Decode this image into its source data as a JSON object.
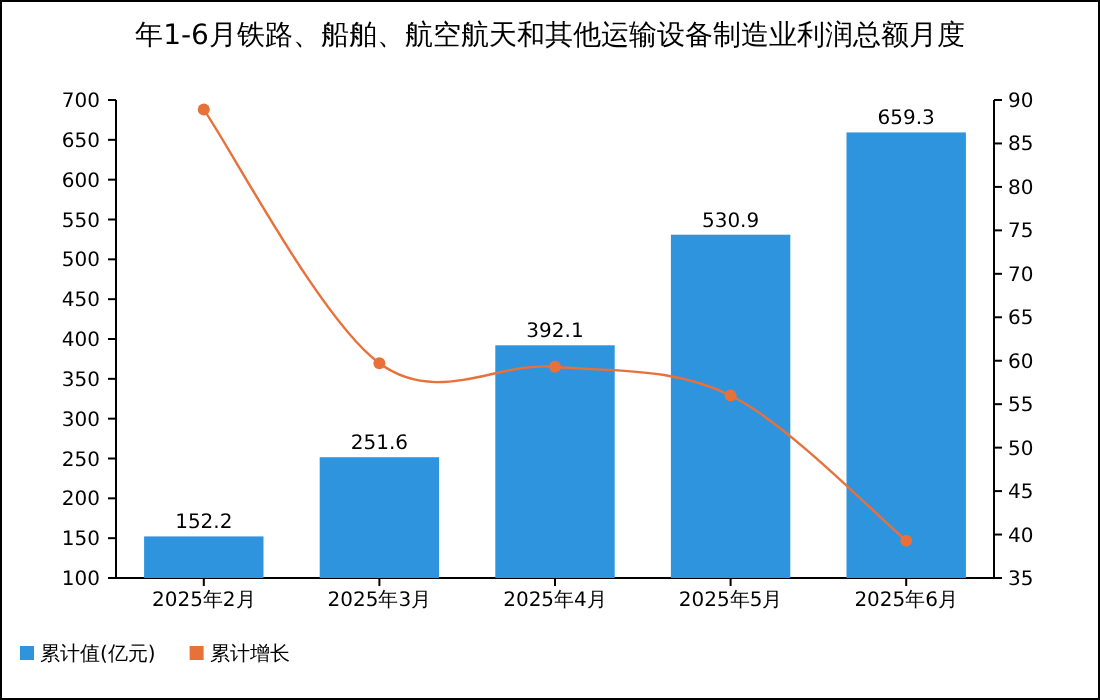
{
  "chart_data": {
    "type": "bar",
    "title": "年1-6月铁路、船舶、航空航天和其他运输设备制造业利润总额月度",
    "categories": [
      "2025年2月",
      "2025年3月",
      "2025年4月",
      "2025年5月",
      "2025年6月"
    ],
    "series": [
      {
        "name": "累计值(亿元)",
        "color": "#2e94dd",
        "values": [
          152.2,
          251.6,
          392.1,
          530.9,
          659.3
        ],
        "value_labels": [
          "152.2",
          "251.6",
          "392.1",
          "530.9",
          "659.3"
        ]
      },
      {
        "name": "累计增长",
        "type": "line",
        "axis": "y2",
        "color": "#e8713a",
        "values": [
          88.9,
          59.7,
          59.3,
          56.0,
          39.3
        ]
      }
    ],
    "ylim": [
      100,
      700
    ],
    "yticks": [
      100,
      150,
      200,
      250,
      300,
      350,
      400,
      450,
      500,
      550,
      600,
      650,
      700
    ],
    "y2lim": [
      35,
      90
    ],
    "y2ticks": [
      35,
      40,
      45,
      50,
      55,
      60,
      65,
      70,
      75,
      80,
      85,
      90
    ],
    "marker": "circle",
    "grid": false,
    "legend": "bottom left"
  }
}
